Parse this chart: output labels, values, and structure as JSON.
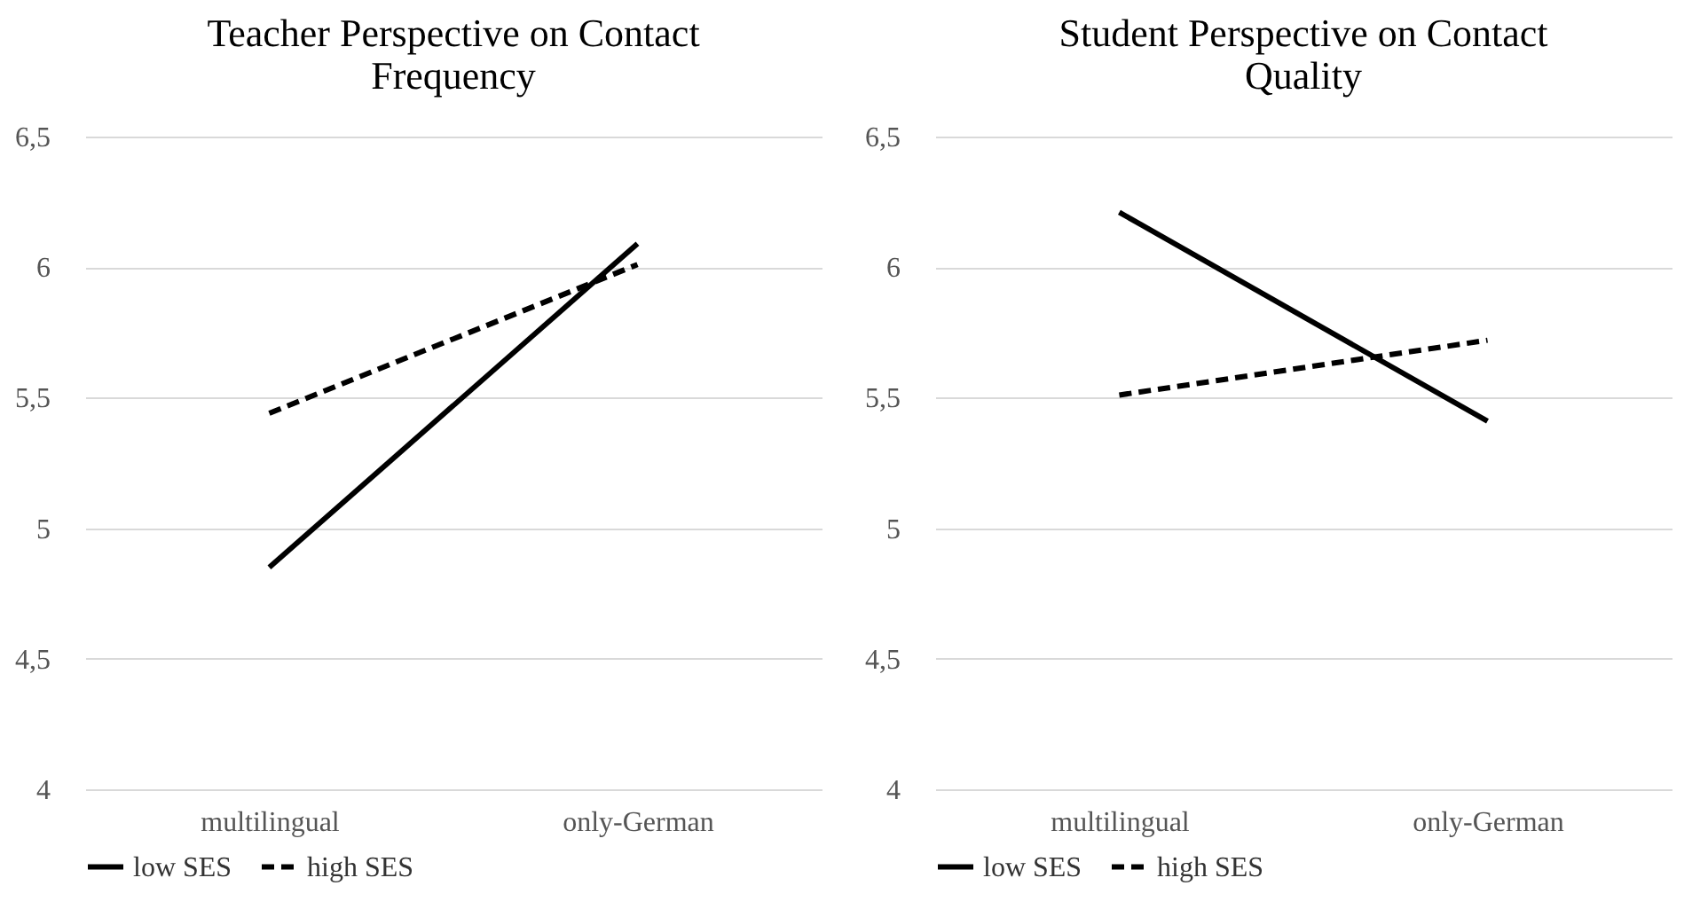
{
  "chart_data": [
    {
      "type": "line",
      "title": "Teacher Perspective on Contact Frequency",
      "categories": [
        "multilingual",
        "only-German"
      ],
      "series": [
        {
          "name": "low SES",
          "color": "#000000",
          "line_style": "solid",
          "values": [
            4.85,
            6.09
          ]
        },
        {
          "name": "high SES",
          "color": "#000000",
          "line_style": "dashed",
          "values": [
            5.44,
            6.01
          ]
        }
      ],
      "ylim": [
        4,
        6.5
      ],
      "yticks": [
        4,
        {
          "value": 4.5,
          "label": "4,5"
        },
        5,
        {
          "value": 5.5,
          "label": "5,5"
        },
        6,
        {
          "value": 6.5,
          "label": "6,5"
        }
      ],
      "grid": "y",
      "legend": "bottom"
    },
    {
      "type": "line",
      "title": "Student Perspective on Contact Quality",
      "categories": [
        "multilingual",
        "only-German"
      ],
      "series": [
        {
          "name": "low SES",
          "color": "#000000",
          "line_style": "solid",
          "values": [
            6.21,
            5.41
          ]
        },
        {
          "name": "high SES",
          "color": "#000000",
          "line_style": "dashed",
          "values": [
            5.51,
            5.72
          ]
        }
      ],
      "ylim": [
        4,
        6.5
      ],
      "yticks": [
        4,
        {
          "value": 4.5,
          "label": "4,5"
        },
        5,
        {
          "value": 5.5,
          "label": "5,5"
        },
        6,
        {
          "value": 6.5,
          "label": "6,5"
        }
      ],
      "grid": "y",
      "legend": "bottom"
    }
  ]
}
